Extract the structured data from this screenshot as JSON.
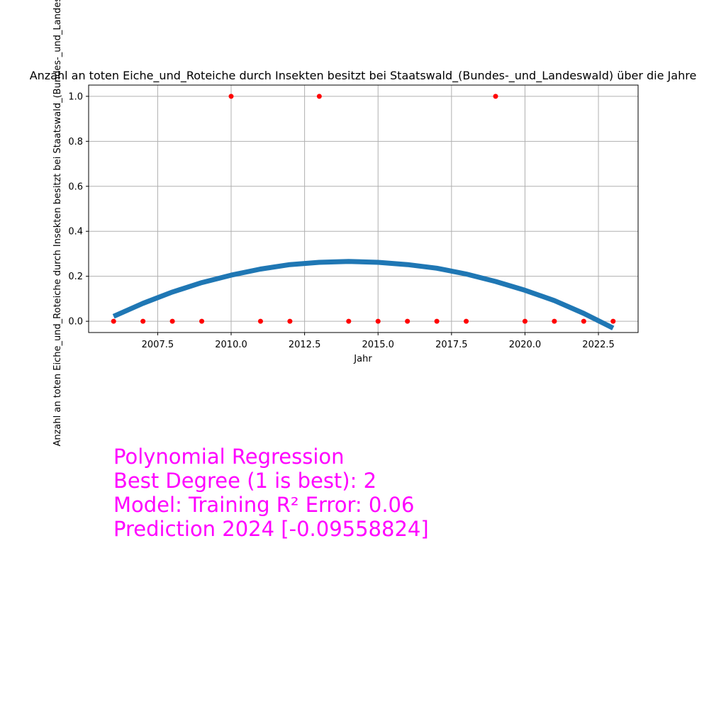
{
  "chart_data": {
    "type": "scatter",
    "title": "Anzahl an toten Eiche_und_Roteiche durch Insekten besitzt bei Staatswald_(Bundes-_und_Landeswald) über die Jahre",
    "xlabel": "Jahr",
    "ylabel": "Anzahl an toten Eiche_und_Roteiche durch Insekten besitzt bei Staatswald_(Bundes-_und_Landeswald)",
    "xlim": [
      2005.15,
      2023.85
    ],
    "ylim": [
      -0.05,
      1.05
    ],
    "x_ticks": [
      2007.5,
      2010.0,
      2012.5,
      2015.0,
      2017.5,
      2020.0,
      2022.5
    ],
    "x_tick_labels": [
      "2007.5",
      "2010.0",
      "2012.5",
      "2015.0",
      "2017.5",
      "2020.0",
      "2022.5"
    ],
    "y_ticks": [
      0.0,
      0.2,
      0.4,
      0.6,
      0.8,
      1.0
    ],
    "y_tick_labels": [
      "0.0",
      "0.2",
      "0.4",
      "0.6",
      "0.8",
      "1.0"
    ],
    "grid": true,
    "series": [
      {
        "type": "scatter",
        "color": "#ff0000",
        "x": [
          2006,
          2007,
          2008,
          2009,
          2010,
          2011,
          2012,
          2013,
          2014,
          2015,
          2016,
          2017,
          2018,
          2019,
          2020,
          2021,
          2022,
          2023
        ],
        "y": [
          0,
          0,
          0,
          0,
          1,
          0,
          0,
          1,
          0,
          0,
          0,
          0,
          0,
          1,
          0,
          0,
          0,
          0
        ]
      },
      {
        "type": "line",
        "color": "#1f77b4",
        "x": [
          2006,
          2007,
          2008,
          2009,
          2010,
          2011,
          2012,
          2013,
          2014,
          2015,
          2016,
          2017,
          2018,
          2019,
          2020,
          2021,
          2022,
          2023
        ],
        "y": [
          0.022,
          0.08,
          0.13,
          0.172,
          0.205,
          0.232,
          0.252,
          0.262,
          0.266,
          0.262,
          0.252,
          0.236,
          0.21,
          0.177,
          0.138,
          0.092,
          0.035,
          -0.03
        ]
      }
    ]
  },
  "annotation": {
    "line1": "Polynomial Regression",
    "line2": "Best Degree (1 is best): 2",
    "line3": "Model: Training R² Error: 0.06",
    "line4": "Prediction 2024 [-0.09558824]"
  }
}
